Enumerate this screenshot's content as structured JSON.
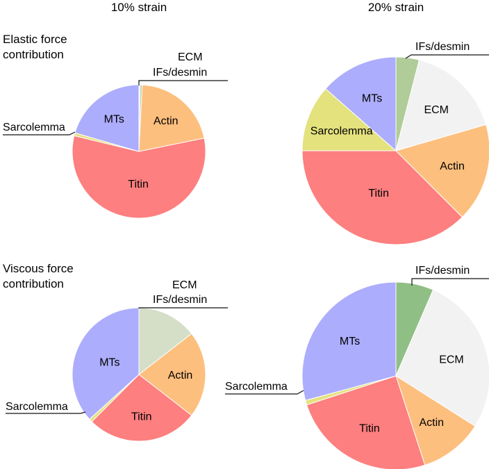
{
  "column_titles": [
    "10% strain",
    "20% strain"
  ],
  "row_titles": [
    [
      "Elastic force",
      "contribution"
    ],
    [
      "Viscous force",
      "contribution"
    ]
  ],
  "chart_data": [
    {
      "type": "pie",
      "row": "Elastic force contribution",
      "column": "10% strain",
      "slices": [
        {
          "label": "ECM",
          "value": 0.3,
          "color": "#ececec"
        },
        {
          "label": "IFs/desmin",
          "value": 0.5,
          "color": "#b7cfa0"
        },
        {
          "label": "Actin",
          "value": 21,
          "color": "#fdbf7e"
        },
        {
          "label": "Titin",
          "value": 57,
          "color": "#fd7f7f"
        },
        {
          "label": "Sarcolemma",
          "value": 0.7,
          "color": "#e4e27d"
        },
        {
          "label": "MTs",
          "value": 20.5,
          "color": "#acadfc"
        }
      ]
    },
    {
      "type": "pie",
      "row": "Elastic force contribution",
      "column": "20% strain",
      "slices": [
        {
          "label": "IFs/desmin",
          "value": 4,
          "color": "#b0cc98"
        },
        {
          "label": "ECM",
          "value": 16.5,
          "color": "#f2f2f2"
        },
        {
          "label": "Actin",
          "value": 17,
          "color": "#fdbf7e"
        },
        {
          "label": "Titin",
          "value": 37.5,
          "color": "#fd7f7f"
        },
        {
          "label": "Sarcolemma",
          "value": 11.5,
          "color": "#e4e27d"
        },
        {
          "label": "MTs",
          "value": 13.5,
          "color": "#acadfc"
        }
      ]
    },
    {
      "type": "pie",
      "row": "Viscous force contribution",
      "column": "10% strain",
      "slices": [
        {
          "label": "ECM",
          "value": 0,
          "color": "#ececec"
        },
        {
          "label": "IFs/desmin",
          "value": 14.5,
          "color": "#d5dfc8"
        },
        {
          "label": "Actin",
          "value": 21,
          "color": "#fdbf7e"
        },
        {
          "label": "Titin",
          "value": 27,
          "color": "#fd7f7f"
        },
        {
          "label": "Sarcolemma",
          "value": 0.8,
          "color": "#e4e27d"
        },
        {
          "label": "MTs",
          "value": 36.7,
          "color": "#acadfc"
        }
      ]
    },
    {
      "type": "pie",
      "row": "Viscous force contribution",
      "column": "20% strain",
      "slices": [
        {
          "label": "IFs/desmin",
          "value": 6.5,
          "color": "#8fbf85"
        },
        {
          "label": "ECM",
          "value": 27.5,
          "color": "#f2f2f2"
        },
        {
          "label": "Actin",
          "value": 11,
          "color": "#fdbf7e"
        },
        {
          "label": "Titin",
          "value": 25,
          "color": "#fd7f7f"
        },
        {
          "label": "Sarcolemma",
          "value": 0.8,
          "color": "#e4e27d"
        },
        {
          "label": "MTs",
          "value": 29.2,
          "color": "#acadfc"
        }
      ]
    }
  ]
}
